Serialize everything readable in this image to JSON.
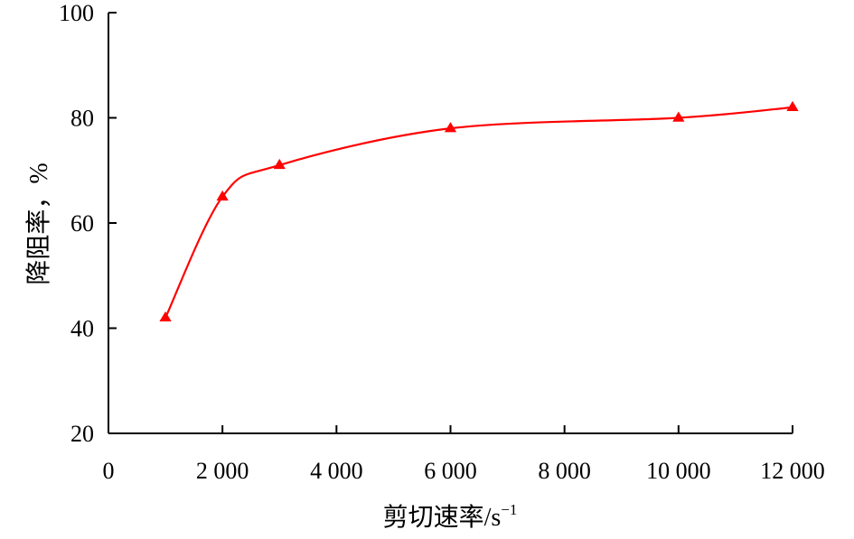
{
  "chart_data": {
    "type": "line",
    "title": "",
    "xlabel": "剪切速率/s",
    "xlabel_superscript": "−1",
    "ylabel": "降阻率，%",
    "xlim": [
      0,
      12000
    ],
    "ylim": [
      20,
      100
    ],
    "x_ticks": [
      0,
      2000,
      4000,
      6000,
      8000,
      10000,
      12000
    ],
    "x_tick_labels": [
      "0",
      "2 000",
      "4 000",
      "6 000",
      "8 000",
      "10 000",
      "12 000"
    ],
    "y_ticks": [
      20,
      40,
      60,
      80,
      100
    ],
    "y_tick_labels": [
      "20",
      "40",
      "60",
      "80",
      "100"
    ],
    "grid": false,
    "legend": "none",
    "series": [
      {
        "color": "#ff0000",
        "marker": "triangle",
        "smooth": true,
        "x": [
          1000,
          2000,
          3000,
          6000,
          10000,
          12000
        ],
        "y": [
          42,
          65,
          71,
          78,
          80,
          82
        ]
      }
    ]
  }
}
